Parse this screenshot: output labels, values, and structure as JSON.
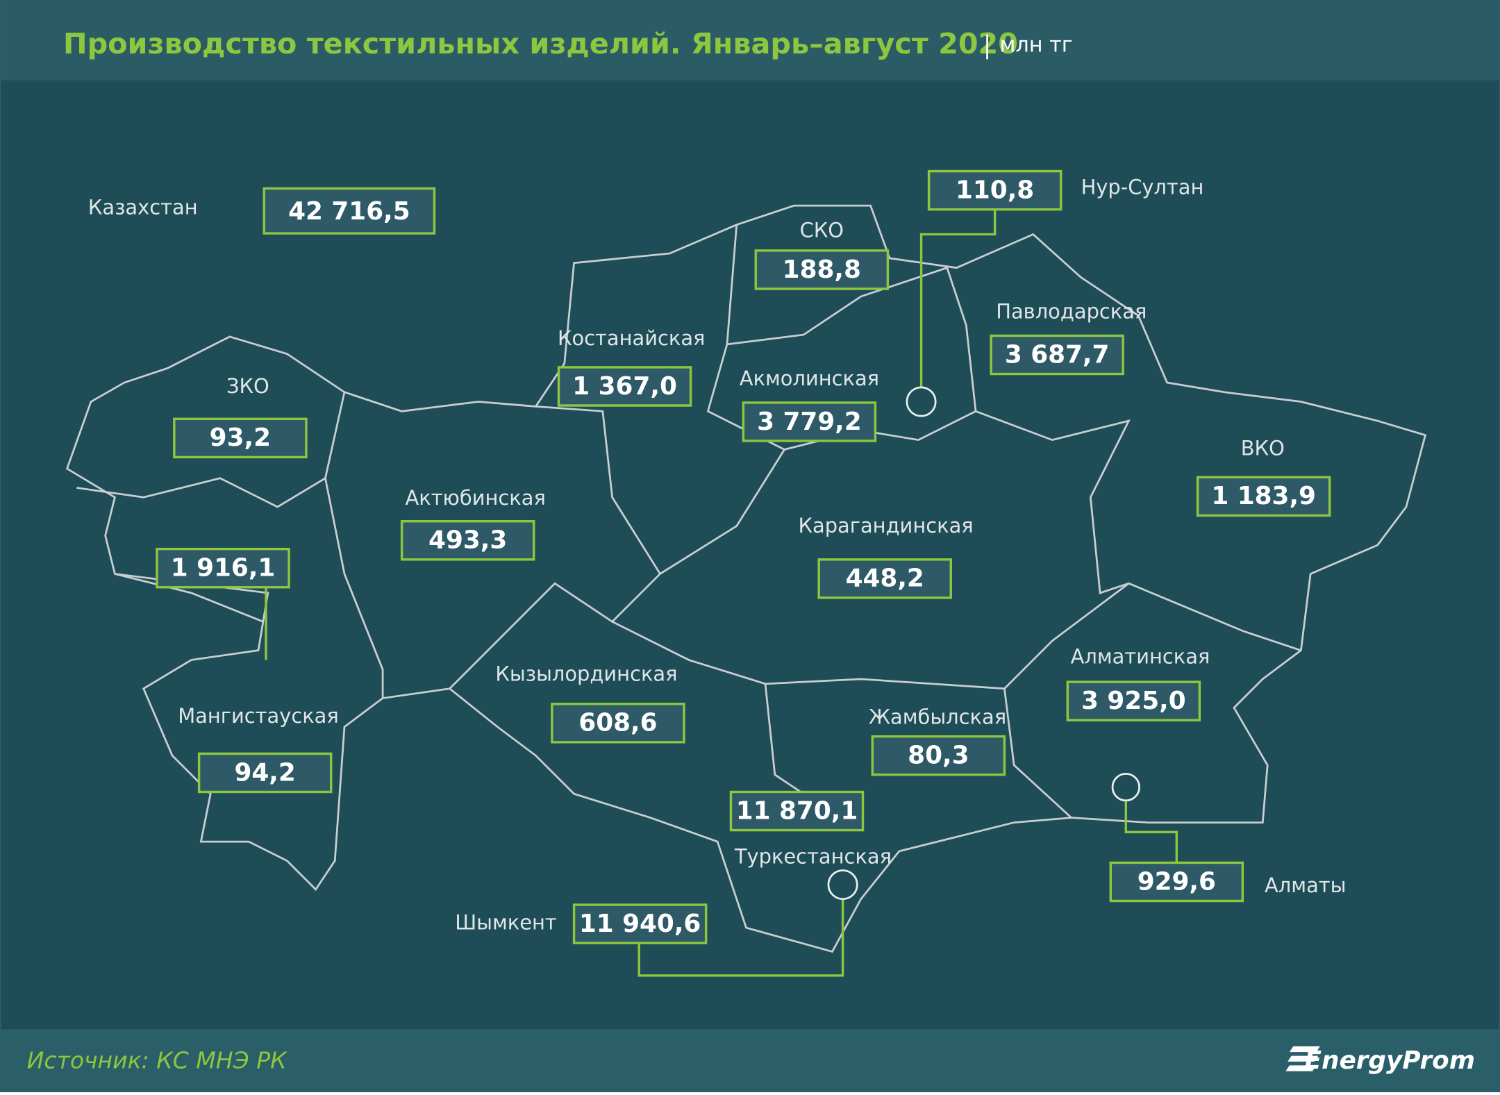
{
  "header": {
    "title": "Производство текстильных изделий. Январь–август 2020",
    "unit": "млн тг"
  },
  "total": {
    "name": "Казахстан",
    "value": "42 716,5"
  },
  "regions": [
    {
      "name": "ЗКО",
      "value": "93,2"
    },
    {
      "value": "1 916,1"
    },
    {
      "name": "Мангистауская",
      "value": "94,2"
    },
    {
      "name": "Актюбинская",
      "value": "493,3"
    },
    {
      "name": "Костанайская",
      "value": "1 367,0"
    },
    {
      "name": "СКО",
      "value": "188,8"
    },
    {
      "name": "Акмолинская",
      "value": "3 779,2"
    },
    {
      "name": "Нур-Султан",
      "value": "110,8"
    },
    {
      "name": "Павлодарская",
      "value": "3 687,7"
    },
    {
      "name": "ВКО",
      "value": "1 183,9"
    },
    {
      "name": "Карагандинская",
      "value": "448,2"
    },
    {
      "name": "Кызылординская",
      "value": "608,6"
    },
    {
      "name": "Жамбылская",
      "value": "80,3"
    },
    {
      "name": "Алматинская",
      "value": "3 925,0"
    },
    {
      "name": "Алматы",
      "value": "929,6"
    },
    {
      "name": "Туркестанская",
      "value": "11 870,1"
    },
    {
      "name": "Шымкент",
      "value": "11 940,6"
    }
  ],
  "footer": {
    "source": "Источник: КС МНЭ РК",
    "logo": "EnergyProm"
  }
}
